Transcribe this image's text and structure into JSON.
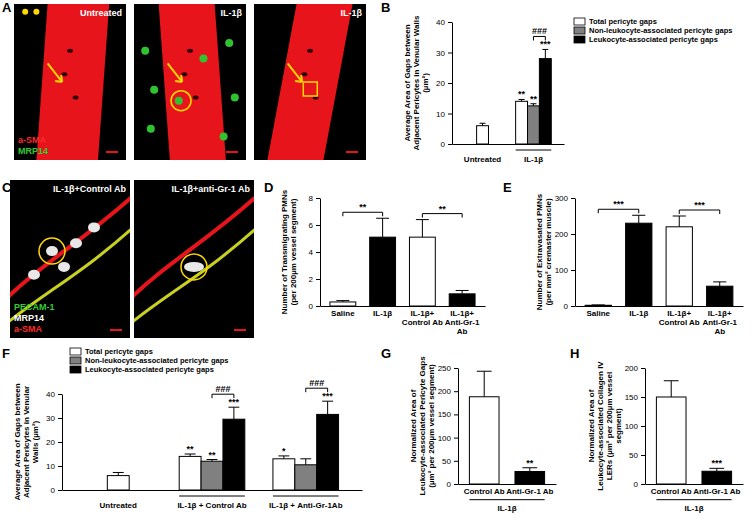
{
  "images": [
    {
      "label": "A",
      "panels": [
        "Untreated",
        "IL-1β",
        "IL-1β"
      ],
      "stains": [
        {
          "text": "a-SMA",
          "color": "#ff2a2a"
        },
        {
          "text": "MRP14",
          "color": "#33cc33"
        }
      ]
    },
    {
      "label": "C",
      "panels": [
        "IL-1β+Control Ab",
        "IL-1β+anti-Gr-1 Ab"
      ],
      "stains": [
        {
          "text": "PECAM-1",
          "color": "#33cc33"
        },
        {
          "text": "MRP14",
          "color": "#ffffff"
        },
        {
          "text": "a-SMA",
          "color": "#ff2a2a"
        }
      ]
    }
  ],
  "chart_data": [
    {
      "label": "B",
      "type": "bar",
      "ylabel": "Average Area of Gaps between Adjacent Pericytes in Venular Walls (µm²)",
      "categories": [
        "Untreated",
        "IL-1β"
      ],
      "series": [
        {
          "name": "Total pericyte gaps",
          "color": "#ffffff",
          "values": [
            6,
            14
          ],
          "errors": [
            0.8,
            0.6
          ],
          "significance": [
            null,
            "**"
          ]
        },
        {
          "name": "Non-leukocyte-associated pericyte gaps",
          "color": "#808080",
          "values": [
            null,
            12.5
          ],
          "errors": [
            null,
            0.7
          ],
          "significance": [
            null,
            "**"
          ]
        },
        {
          "name": "Leukocyte-associated pericyte gaps",
          "color": "#000000",
          "values": [
            null,
            28
          ],
          "errors": [
            null,
            3
          ],
          "significance": [
            null,
            "***"
          ]
        }
      ],
      "comparisons": [
        {
          "text": "###",
          "between": [
            [
              1,
              1
            ],
            [
              1,
              2
            ]
          ]
        }
      ],
      "ylim": [
        0,
        40
      ],
      "yticks": [
        0,
        10,
        20,
        30,
        40
      ],
      "legend": "top right"
    },
    {
      "label": "D",
      "type": "bar",
      "ylabel": "Number of Transmigrating PMNs (per 200µm vessel segment)",
      "categories": [
        "Saline",
        "IL-1β",
        "IL-1β+ Control Ab",
        "IL-1β+ Anti-Gr-1 Ab"
      ],
      "values": [
        0.3,
        5.1,
        5.1,
        0.9
      ],
      "errors": [
        0.1,
        1.4,
        1.3,
        0.25
      ],
      "colors": [
        "#ffffff",
        "#000000",
        "#ffffff",
        "#000000"
      ],
      "comparisons": [
        {
          "text": "**",
          "between": [
            0,
            1
          ]
        },
        {
          "text": "**",
          "between": [
            2,
            3
          ]
        }
      ],
      "ylim": [
        0,
        8
      ],
      "yticks": [
        0,
        2,
        4,
        6,
        8
      ]
    },
    {
      "label": "E",
      "type": "bar",
      "ylabel": "Number of Extravasated PMNs (per mm² cremaster muscle)",
      "categories": [
        "Saline",
        "IL-1β",
        "IL-1β+ Control Ab",
        "IL-1β+ Anti-Gr-1 Ab"
      ],
      "values": [
        2,
        230,
        220,
        55
      ],
      "errors": [
        1,
        22,
        30,
        12
      ],
      "colors": [
        "#ffffff",
        "#000000",
        "#ffffff",
        "#000000"
      ],
      "comparisons": [
        {
          "text": "***",
          "between": [
            0,
            1
          ]
        },
        {
          "text": "***",
          "between": [
            2,
            3
          ]
        }
      ],
      "ylim": [
        0,
        300
      ],
      "yticks": [
        0,
        100,
        200,
        300
      ]
    },
    {
      "label": "F",
      "type": "bar",
      "ylabel": "Average Area of Gaps between Adjacent Pericytes in Venular Walls (µm²)",
      "categories": [
        "Untreated",
        "IL-1β + Control Ab",
        "IL-1β + Anti-Gr-1Ab"
      ],
      "series": [
        {
          "name": "Total pericyte gaps",
          "color": "#ffffff",
          "values": [
            6,
            14,
            13
          ],
          "errors": [
            1.3,
            1,
            1.2
          ],
          "significance": [
            null,
            "**",
            "*"
          ]
        },
        {
          "name": "Non-leukocyte-associated pericyte gaps",
          "color": "#808080",
          "values": [
            null,
            12,
            10.5
          ],
          "errors": [
            null,
            0.7,
            2.5
          ],
          "significance": [
            null,
            "**",
            null
          ]
        },
        {
          "name": "Leukocyte-associated pericyte gaps",
          "color": "#000000",
          "values": [
            null,
            29.5,
            31.5
          ],
          "errors": [
            null,
            5,
            5.5
          ],
          "significance": [
            null,
            "***",
            "***"
          ]
        }
      ],
      "comparisons": [
        {
          "text": "###",
          "between": [
            [
              1,
              1
            ],
            [
              1,
              2
            ]
          ]
        },
        {
          "text": "###",
          "between": [
            [
              2,
              1
            ],
            [
              2,
              2
            ]
          ]
        }
      ],
      "ylim": [
        0,
        40
      ],
      "yticks": [
        0,
        10,
        20,
        30,
        40
      ],
      "legend": "top left"
    },
    {
      "label": "G",
      "type": "bar",
      "ylabel": "Normalized Area of Leukocyte-associated Pericyte Gaps (µm² per 200µm vessel segment)",
      "categories": [
        "Control Ab",
        "Anti-Gr-1 Ab"
      ],
      "xlabel": "IL-1β",
      "values": [
        188,
        27
      ],
      "errors": [
        55,
        8
      ],
      "significance": [
        null,
        "**"
      ],
      "colors": [
        "#ffffff",
        "#000000"
      ],
      "ylim": [
        0,
        250
      ],
      "yticks": [
        0,
        50,
        100,
        150,
        200,
        250
      ]
    },
    {
      "label": "H",
      "type": "bar",
      "ylabel": "Normalized Area of Leukocyte-associated Collagen IV LERs (µm² per 200µm vessel segment)",
      "categories": [
        "Control Ab",
        "Anti-Gr-1 Ab"
      ],
      "xlabel": "IL-1β",
      "values": [
        150,
        22
      ],
      "errors": [
        28,
        5
      ],
      "significance": [
        null,
        "***"
      ],
      "colors": [
        "#ffffff",
        "#000000"
      ],
      "ylim": [
        0,
        200
      ],
      "yticks": [
        0,
        50,
        100,
        150,
        200
      ]
    }
  ]
}
